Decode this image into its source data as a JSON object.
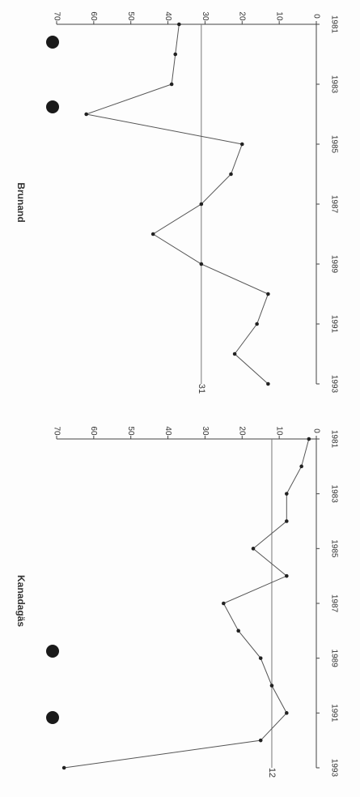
{
  "hole_punches": 4,
  "chart_data": [
    {
      "type": "line",
      "title": "Kanadagäs",
      "x": [
        1981,
        1982,
        1983,
        1984,
        1985,
        1986,
        1987,
        1988,
        1989,
        1990,
        1991,
        1992,
        1993
      ],
      "x_ticks": [
        "1981",
        "1983",
        "1985",
        "1987",
        "1989",
        "1991",
        "1993"
      ],
      "y_ticks": [
        "0",
        "10",
        "20",
        "30",
        "40",
        "50",
        "60",
        "70"
      ],
      "ylim": [
        0,
        70
      ],
      "series": [
        {
          "values": [
            2,
            4,
            8,
            8,
            17,
            8,
            25,
            21,
            15,
            12,
            8,
            15,
            68
          ]
        }
      ],
      "reference": {
        "value": 12,
        "label": "12"
      }
    },
    {
      "type": "line",
      "title": "Brunand",
      "x": [
        1981,
        1982,
        1983,
        1984,
        1985,
        1986,
        1987,
        1988,
        1989,
        1990,
        1991,
        1992,
        1993
      ],
      "x_ticks": [
        "1981",
        "1983",
        "1985",
        "1987",
        "1989",
        "1991",
        "1993"
      ],
      "y_ticks": [
        "0",
        "10",
        "20",
        "30",
        "40",
        "50",
        "60",
        "70"
      ],
      "ylim": [
        0,
        70
      ],
      "series": [
        {
          "values": [
            37,
            38,
            39,
            62,
            20,
            23,
            31,
            44,
            31,
            13,
            16,
            22,
            13
          ]
        }
      ],
      "reference": {
        "value": 31,
        "label": "31"
      }
    }
  ]
}
